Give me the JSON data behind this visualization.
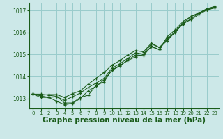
{
  "bg_color": "#cce8e8",
  "grid_color": "#99cccc",
  "line_color": "#1a5c1a",
  "xlabel": "Graphe pression niveau de la mer (hPa)",
  "xlabel_fontsize": 7.5,
  "ylabel_ticks": [
    1013,
    1014,
    1015,
    1016,
    1017
  ],
  "xlim": [
    -0.5,
    23.5
  ],
  "ylim": [
    1012.55,
    1017.35
  ],
  "xticks": [
    0,
    1,
    2,
    3,
    4,
    5,
    6,
    7,
    8,
    9,
    10,
    11,
    12,
    13,
    14,
    15,
    16,
    17,
    18,
    19,
    20,
    21,
    22,
    23
  ],
  "series": [
    [
      1013.2,
      1013.2,
      1013.15,
      1013.1,
      1012.8,
      1012.8,
      1013.05,
      1013.15,
      1013.6,
      1013.75,
      1014.3,
      1014.5,
      1014.72,
      1014.9,
      1015.0,
      1015.35,
      1015.22,
      1015.8,
      1016.12,
      1016.5,
      1016.72,
      1016.9,
      1017.02,
      1017.12
    ],
    [
      1013.2,
      1013.05,
      1013.05,
      1012.88,
      1012.72,
      1012.78,
      1013.0,
      1013.35,
      1013.55,
      1013.85,
      1014.28,
      1014.48,
      1014.75,
      1014.98,
      1014.95,
      1015.38,
      1015.22,
      1015.72,
      1015.98,
      1016.42,
      1016.72,
      1016.88,
      1017.05,
      1017.15
    ],
    [
      1013.2,
      1013.12,
      1013.05,
      1013.08,
      1012.92,
      1013.08,
      1013.25,
      1013.5,
      1013.7,
      1013.92,
      1014.38,
      1014.58,
      1014.82,
      1015.08,
      1015.02,
      1015.48,
      1015.32,
      1015.68,
      1016.05,
      1016.42,
      1016.58,
      1016.82,
      1017.02,
      1017.12
    ],
    [
      1013.2,
      1013.15,
      1013.18,
      1013.18,
      1013.05,
      1013.22,
      1013.35,
      1013.65,
      1013.92,
      1014.18,
      1014.52,
      1014.72,
      1014.98,
      1015.18,
      1015.12,
      1015.52,
      1015.32,
      1015.62,
      1016.02,
      1016.38,
      1016.62,
      1016.88,
      1017.08,
      1017.18
    ]
  ]
}
